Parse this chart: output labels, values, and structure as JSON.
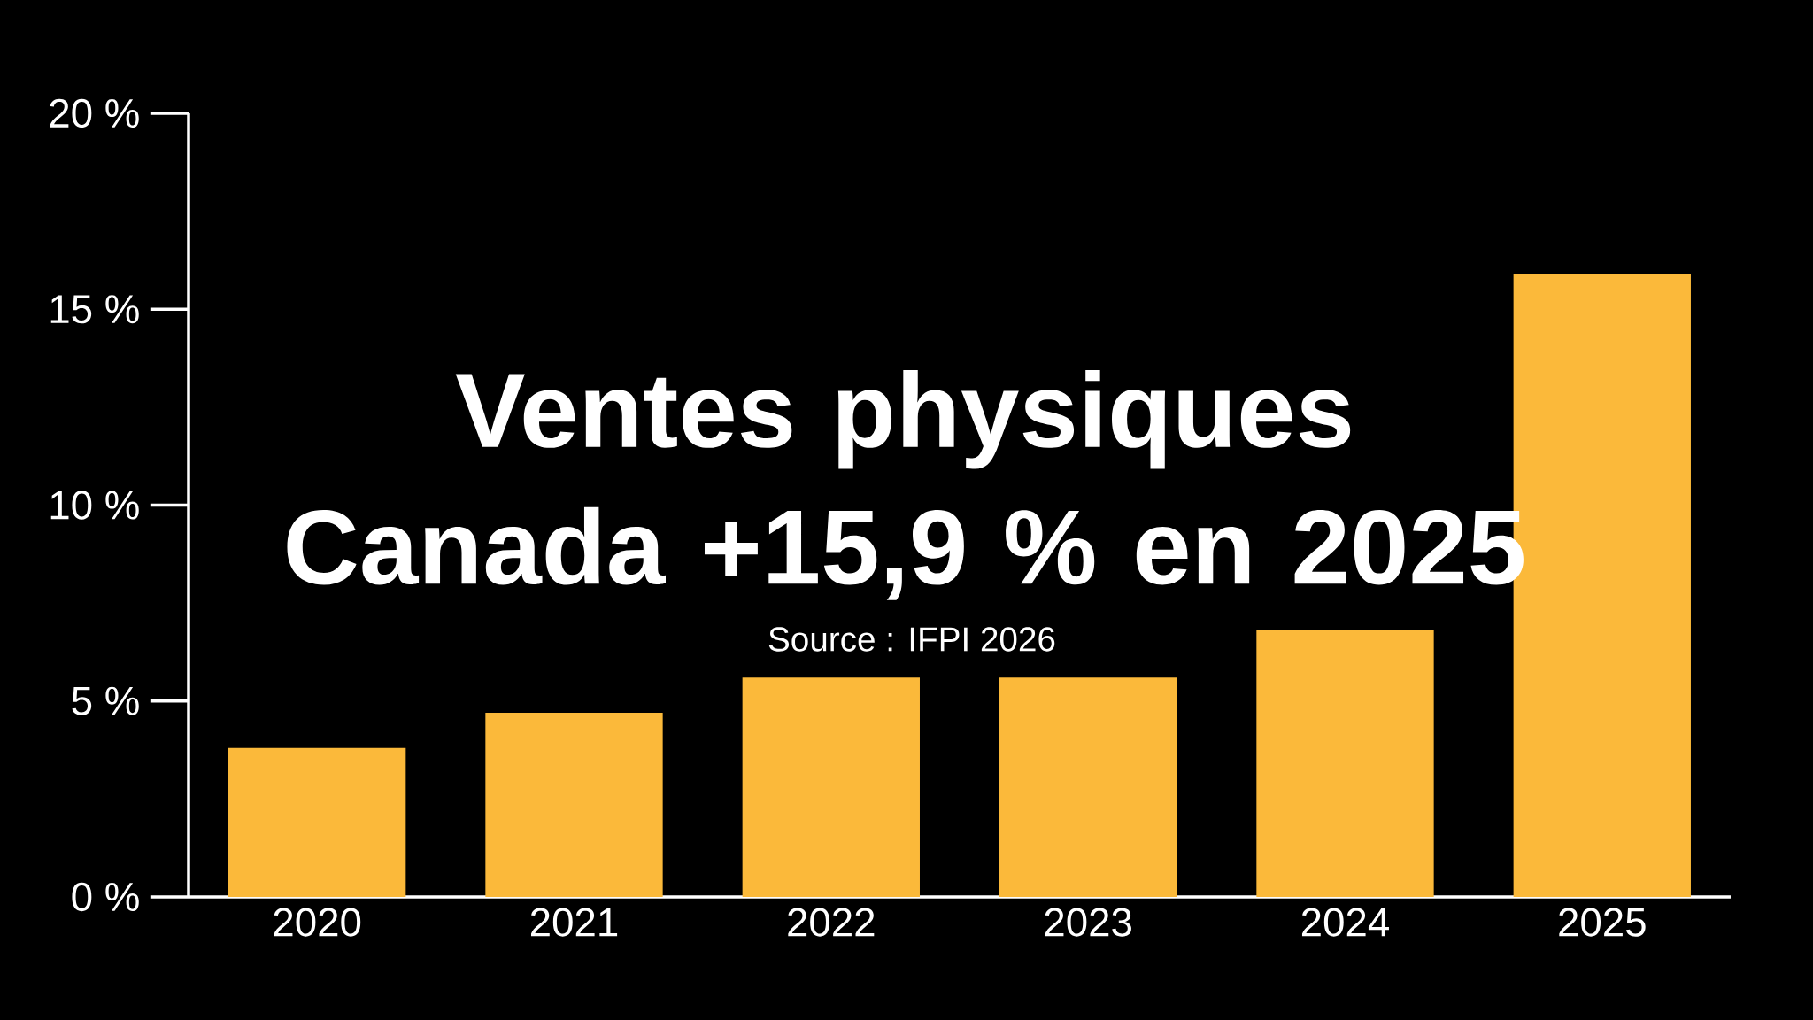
{
  "chart_data": {
    "type": "bar",
    "title": "Ventes physiques\nCanada +15,9 % en 2025",
    "annotations": [
      "Source : IFPI 2026"
    ],
    "categories": [
      "2020",
      "2021",
      "2022",
      "2023",
      "2024",
      "2025"
    ],
    "values": [
      3.8,
      4.7,
      5.6,
      5.6,
      6.8,
      15.9
    ],
    "color": "#fbb93a",
    "ylim": [
      0,
      20
    ],
    "yticks": [
      {
        "value": 0,
        "label": "0 %"
      },
      {
        "value": 5,
        "label": "5 %"
      },
      {
        "value": 10,
        "label": "10 %"
      },
      {
        "value": 15,
        "label": "15 %"
      },
      {
        "value": 20,
        "label": "20 %"
      }
    ],
    "grid": false
  }
}
